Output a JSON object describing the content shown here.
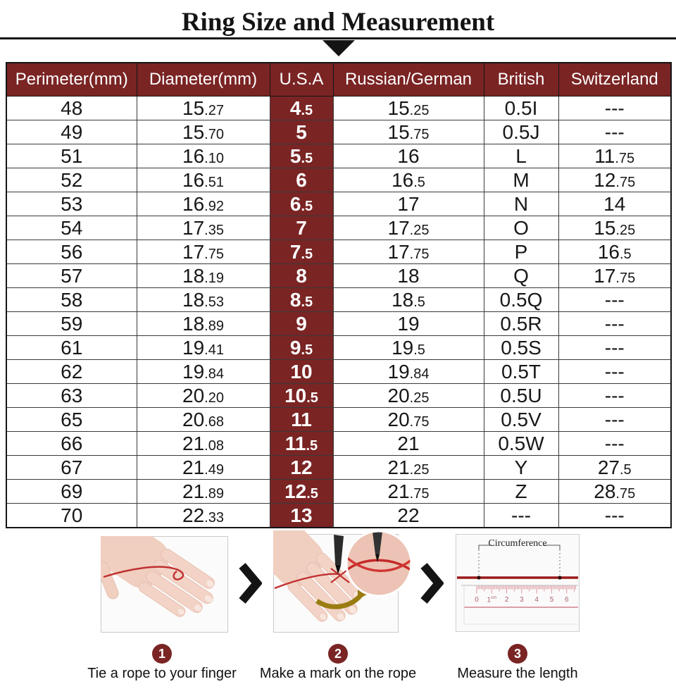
{
  "title": "Ring Size and Measurement",
  "colors": {
    "maroon": "#7a2424",
    "grid_line": "#3a3a3a",
    "rope_red": "#9b1b1b"
  },
  "table": {
    "headers": [
      "Perimeter(mm)",
      "Diameter(mm)",
      "U.S.A",
      "Russian/German",
      "British",
      "Switzerland"
    ],
    "rows": [
      [
        "48",
        "15.27",
        "4.5",
        "15.25",
        "0.5I",
        "---"
      ],
      [
        "49",
        "15.70",
        "5",
        "15.75",
        "0.5J",
        "---"
      ],
      [
        "51",
        "16.10",
        "5.5",
        "16",
        "L",
        "11.75"
      ],
      [
        "52",
        "16.51",
        "6",
        "16.5",
        "M",
        "12.75"
      ],
      [
        "53",
        "16.92",
        "6.5",
        "17",
        "N",
        "14"
      ],
      [
        "54",
        "17.35",
        "7",
        "17.25",
        "O",
        "15.25"
      ],
      [
        "56",
        "17.75",
        "7.5",
        "17.75",
        "P",
        "16.5"
      ],
      [
        "57",
        "18.19",
        "8",
        "18",
        "Q",
        "17.75"
      ],
      [
        "58",
        "18.53",
        "8.5",
        "18.5",
        "0.5Q",
        "---"
      ],
      [
        "59",
        "18.89",
        "9",
        "19",
        "0.5R",
        "---"
      ],
      [
        "61",
        "19.41",
        "9.5",
        "19.5",
        "0.5S",
        "---"
      ],
      [
        "62",
        "19.84",
        "10",
        "19.84",
        "0.5T",
        "---"
      ],
      [
        "63",
        "20.20",
        "10.5",
        "20.25",
        "0.5U",
        "---"
      ],
      [
        "65",
        "20.68",
        "11",
        "20.75",
        "0.5V",
        "---"
      ],
      [
        "66",
        "21.08",
        "11.5",
        "21",
        "0.5W",
        "---"
      ],
      [
        "67",
        "21.49",
        "12",
        "21.25",
        "Y",
        "27.5"
      ],
      [
        "69",
        "21.89",
        "12.5",
        "21.75",
        "Z",
        "28.75"
      ],
      [
        "70",
        "22.33",
        "13",
        "22",
        "---",
        "---"
      ]
    ]
  },
  "steps": [
    {
      "number": "1",
      "caption": "Tie a rope to your finger"
    },
    {
      "number": "2",
      "caption": "Make a mark on the rope"
    },
    {
      "number": "3",
      "caption": "Measure the length"
    }
  ],
  "ruler": {
    "label": "Circumference",
    "ticks": [
      "0",
      "1",
      "2",
      "3",
      "4",
      "5",
      "6"
    ],
    "unit": "cm"
  }
}
